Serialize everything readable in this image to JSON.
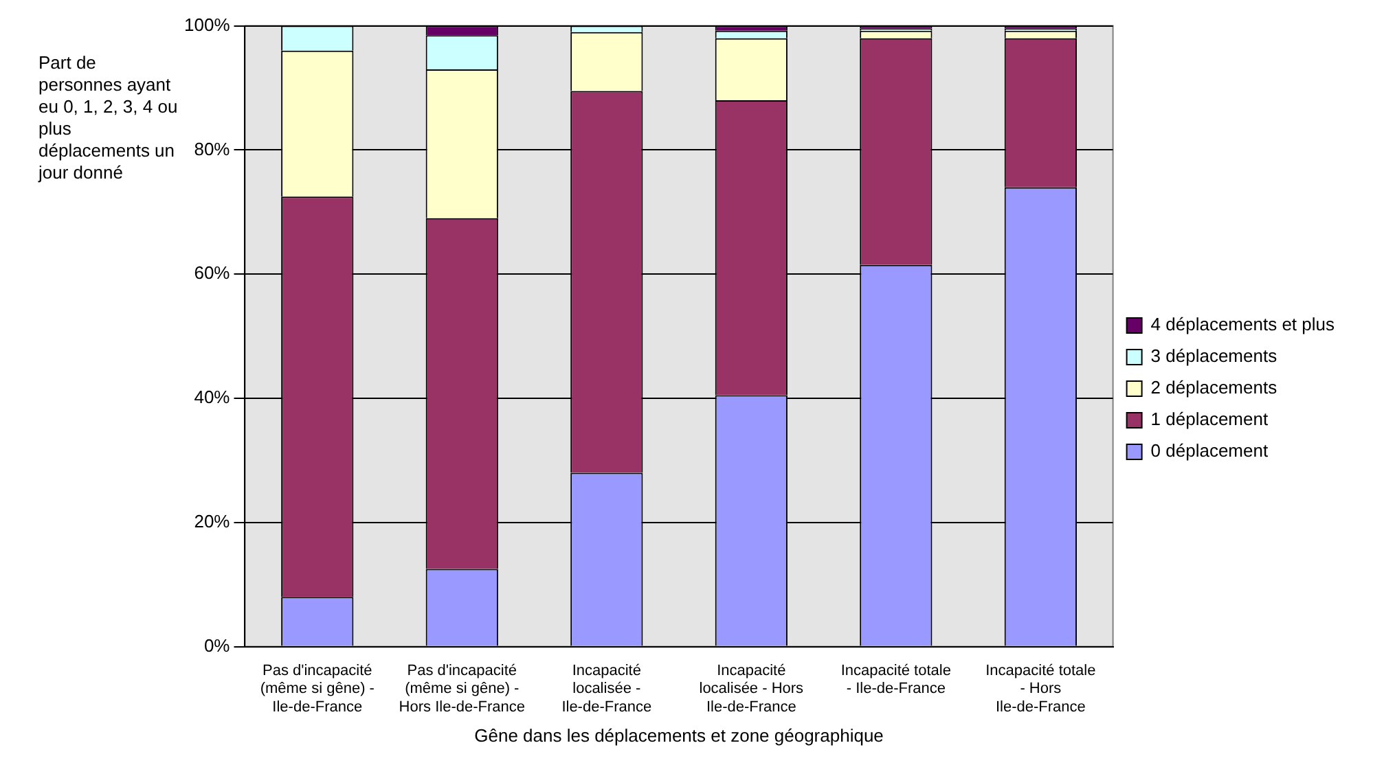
{
  "chart_data": {
    "type": "bar",
    "stacked": true,
    "xlabel": "Gêne dans les déplacements et zone géographique",
    "ylabel": "Part de personnes ayant eu 0, 1, 2, 3, 4 ou plus déplacements un jour donné",
    "categories": [
      "Pas d'incapacité (même si gêne) - Ile-de-France",
      "Pas d'incapacité (même si gêne) - Hors Ile-de-France",
      "Incapacité localisée - Ile-de-France",
      "Incapacité localisée - Hors Ile-de-France",
      "Incapacité totale - Ile-de-France",
      "Incapacité totale - Hors Ile-de-France"
    ],
    "series": [
      {
        "name": "0 déplacement",
        "color": "#9999ff",
        "values": [
          8,
          12.5,
          28,
          40.5,
          61.5,
          74
        ]
      },
      {
        "name": "1 déplacement",
        "color": "#993366",
        "values": [
          64.5,
          56.5,
          61.5,
          47.5,
          36.5,
          24
        ]
      },
      {
        "name": "2 déplacements",
        "color": "#ffffcc",
        "values": [
          23.5,
          24,
          9.5,
          10,
          1.2,
          1.2
        ]
      },
      {
        "name": "3 déplacements",
        "color": "#ccffff",
        "values": [
          4,
          5.5,
          1,
          1.2,
          0.4,
          0.4
        ]
      },
      {
        "name": "4 déplacements et plus",
        "color": "#660066",
        "values": [
          0,
          1.5,
          0,
          0.8,
          0.4,
          0.4
        ]
      }
    ],
    "ylim": [
      0,
      100
    ],
    "yticks": [
      {
        "value": 0,
        "label": "0%"
      },
      {
        "value": 20,
        "label": "20%"
      },
      {
        "value": 40,
        "label": "40%"
      },
      {
        "value": 60,
        "label": "60%"
      },
      {
        "value": 80,
        "label": "80%"
      },
      {
        "value": 100,
        "label": "100%"
      }
    ],
    "grid": "y",
    "legend": "right"
  }
}
